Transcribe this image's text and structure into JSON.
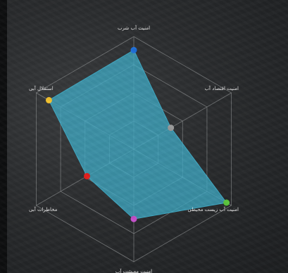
{
  "chart_data": {
    "type": "radar",
    "axes": [
      "امنیت آب شرب",
      "امنیت اقتصاد آب",
      "امنیت آب زیست محیطی",
      "امنیت معیشت آب",
      "مخاطرات آبی",
      "استقلال آبی"
    ],
    "values": [
      0.88,
      0.38,
      0.95,
      0.62,
      0.48,
      0.87
    ],
    "range": [
      0,
      1
    ],
    "rings": 4,
    "fill_color": "#3fa9c4",
    "marker_colors": [
      "#1e6fd9",
      "#9a9a9a",
      "#59c23b",
      "#c34fc9",
      "#e3201c",
      "#f2c12e"
    ]
  }
}
